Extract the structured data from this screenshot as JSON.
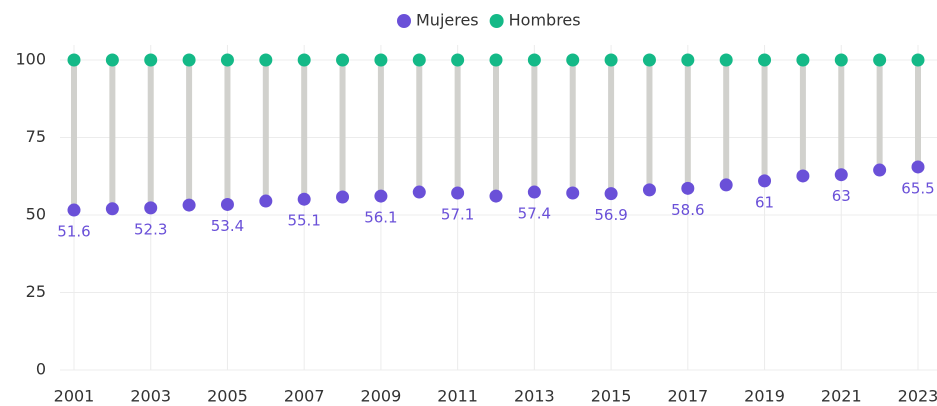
{
  "chart_data": {
    "type": "dumbbell",
    "x": [
      2001,
      2002,
      2003,
      2004,
      2005,
      2006,
      2007,
      2008,
      2009,
      2010,
      2011,
      2012,
      2013,
      2014,
      2015,
      2016,
      2017,
      2018,
      2019,
      2020,
      2021,
      2022,
      2023
    ],
    "series": [
      {
        "name": "Mujeres",
        "color": "#6a50d8",
        "values": [
          51.6,
          52.0,
          52.3,
          53.2,
          53.4,
          54.5,
          55.1,
          55.8,
          56.1,
          57.4,
          57.1,
          56.1,
          57.4,
          57.1,
          56.9,
          58.1,
          58.6,
          59.7,
          61,
          62.6,
          63,
          64.5,
          65.5
        ],
        "value_labels": [
          "51.6",
          null,
          "52.3",
          null,
          "53.4",
          null,
          "55.1",
          null,
          "56.1",
          null,
          "57.1",
          null,
          "57.4",
          null,
          "56.9",
          null,
          "58.6",
          null,
          "61",
          null,
          "63",
          null,
          "65.5"
        ]
      },
      {
        "name": "Hombres",
        "color": "#14b987",
        "values": [
          100,
          100,
          100,
          100,
          100,
          100,
          100,
          100,
          100,
          100,
          100,
          100,
          100,
          100,
          100,
          100,
          100,
          100,
          100,
          100,
          100,
          100,
          100
        ]
      }
    ],
    "xlim": [
      2001,
      2023
    ],
    "xticks": [
      2001,
      2003,
      2005,
      2007,
      2009,
      2011,
      2013,
      2015,
      2017,
      2019,
      2021,
      2023
    ],
    "ylim": [
      0,
      100
    ],
    "yticks": [
      0,
      25,
      50,
      75,
      100
    ],
    "grid": true,
    "legend": "top"
  }
}
